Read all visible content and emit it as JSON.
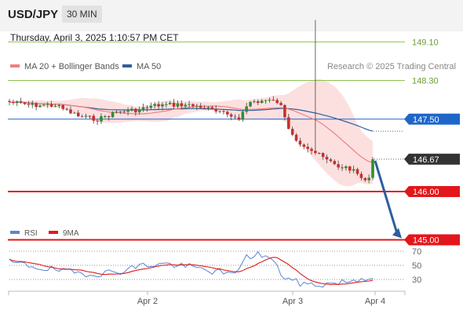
{
  "header": {
    "symbol": "USD/JPY",
    "interval": "30 MIN"
  },
  "datetime": "Thursday, April 3, 2025 1:10:57 PM CET",
  "legend": {
    "items": [
      {
        "label": "MA 20 + Bollinger Bands",
        "color": "#f08080"
      },
      {
        "label": "MA 50",
        "color": "#2e5e9c"
      }
    ],
    "research": "Research © 2025 Trading Central"
  },
  "rsi_legend": {
    "items": [
      {
        "label": "RSI",
        "color": "#5b84d6"
      },
      {
        "label": "9MA",
        "color": "#dd1c1c"
      }
    ]
  },
  "chart_data": [
    {
      "type": "candlestick",
      "levels": [
        {
          "label": "149.10",
          "value": 149.1,
          "color": "#8dc251",
          "style": "thin"
        },
        {
          "label": "148.30",
          "value": 148.3,
          "color": "#8dc251",
          "style": "thin"
        },
        {
          "label": "147.50",
          "value": 147.5,
          "color": "#1e66c8",
          "style": "thin",
          "badge_color": "#1e66c8"
        },
        {
          "label": "146.67",
          "value": 146.67,
          "color": "#333333",
          "style": "last-price",
          "badge_color": "#333333"
        },
        {
          "label": "146.00",
          "value": 146.0,
          "color": "#e3161b",
          "style": "thick",
          "badge_color": "#e3161b"
        },
        {
          "label": "145.00",
          "value": 145.0,
          "color": "#e3161b",
          "style": "thick",
          "badge_color": "#e3161b"
        }
      ],
      "x_ticks": [
        "Apr 2",
        "Apr 3",
        "Apr 4"
      ],
      "target_arrow": {
        "from": 146.67,
        "to": 145.0,
        "color": "#2e5e9c"
      },
      "colors": {
        "up": "#2f8f2f",
        "down": "#c9302c",
        "band": "#fbd5d5",
        "ma20": "#f08080",
        "ma50": "#2e5e9c"
      }
    },
    {
      "type": "line",
      "title": "RSI",
      "y_ticks": [
        "70",
        "50",
        "30"
      ],
      "levels": [
        70,
        50,
        30
      ],
      "series": [
        {
          "name": "RSI",
          "color": "#5b84d6"
        },
        {
          "name": "9MA",
          "color": "#dd1c1c"
        }
      ]
    }
  ]
}
